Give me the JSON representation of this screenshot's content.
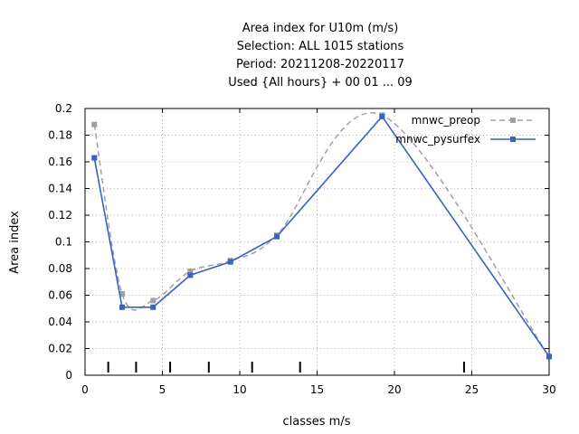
{
  "chart_data": {
    "type": "line",
    "title_lines": [
      "Area index  for U10m (m/s)",
      "Selection: ALL    1015 stations",
      "Period: 20211208-20220117",
      "Used {All hours} + 00 01 ... 09"
    ],
    "xlabel": "classes m/s",
    "ylabel": "Area index",
    "xlim": [
      0,
      30
    ],
    "ylim": [
      0,
      0.2
    ],
    "x_ticks": [
      0,
      5,
      10,
      15,
      20,
      25,
      30
    ],
    "x_tick_labels": [
      "0",
      "5",
      "10",
      "15",
      "20",
      "25",
      "30"
    ],
    "y_ticks": [
      0,
      0.02,
      0.04,
      0.06,
      0.08,
      0.1,
      0.12,
      0.14,
      0.16,
      0.18,
      0.2
    ],
    "y_tick_labels": [
      "0",
      "0.02",
      "0.04",
      "0.06",
      "0.08",
      "0.1",
      "0.12",
      "0.14",
      "0.16",
      "0.18",
      "0.2"
    ],
    "grid": true,
    "legend_position": "top-right",
    "class_boundaries": [
      1.5,
      3.3,
      5.5,
      8.0,
      10.8,
      13.9,
      24.5
    ],
    "series": [
      {
        "name": "mnwc_preop",
        "color": "#a0a0a0",
        "style": "dashed",
        "smooth": true,
        "x": [
          0.6,
          2.4,
          4.4,
          6.8,
          9.4,
          12.4,
          19.2,
          30.0
        ],
        "y": [
          0.188,
          0.061,
          0.056,
          0.078,
          0.086,
          0.105,
          0.195,
          0.014
        ]
      },
      {
        "name": "mnwc_pysurfex",
        "color": "#3a62c4",
        "style": "solid",
        "smooth": false,
        "x": [
          0.6,
          2.4,
          4.4,
          6.8,
          9.4,
          12.4,
          19.2,
          30.0
        ],
        "y": [
          0.163,
          0.051,
          0.051,
          0.075,
          0.085,
          0.104,
          0.194,
          0.014
        ]
      }
    ]
  }
}
